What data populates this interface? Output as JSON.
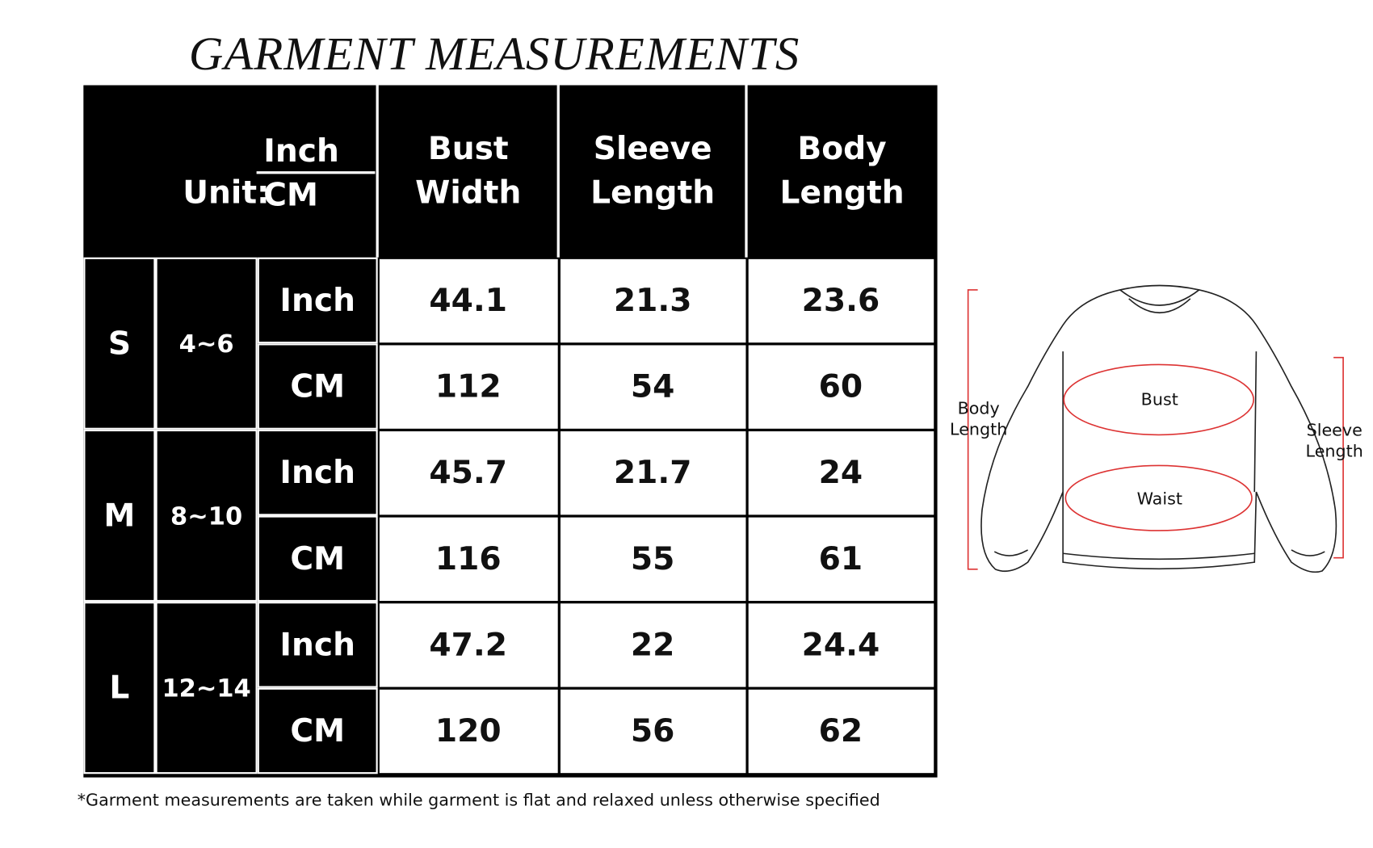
{
  "title": "GARMENT MEASUREMENTS",
  "table": {
    "unit_label": "Unit:",
    "unit_top": "Inch",
    "unit_bottom": "CM",
    "columns": [
      "Bust Width",
      "Sleeve Length",
      "Body Length"
    ],
    "sizes": [
      {
        "size": "S",
        "range": "4~6",
        "rows": [
          {
            "unit": "Inch",
            "values": [
              44.1,
              21.3,
              23.6
            ]
          },
          {
            "unit": "CM",
            "values": [
              112,
              54,
              60
            ]
          }
        ]
      },
      {
        "size": "M",
        "range": "8~10",
        "rows": [
          {
            "unit": "Inch",
            "values": [
              45.7,
              21.7,
              24
            ]
          },
          {
            "unit": "CM",
            "values": [
              116,
              55,
              61
            ]
          }
        ]
      },
      {
        "size": "L",
        "range": "12~14",
        "rows": [
          {
            "unit": "Inch",
            "values": [
              47.2,
              22,
              24.4
            ]
          },
          {
            "unit": "CM",
            "values": [
              120,
              56,
              62
            ]
          }
        ]
      }
    ]
  },
  "footnote": "*Garment measurements are taken while garment is flat and relaxed unless otherwise specified",
  "diagram": {
    "body_length": "Body Length",
    "sleeve_length": "Sleeve Length",
    "bust": "Bust",
    "waist": "Waist"
  }
}
